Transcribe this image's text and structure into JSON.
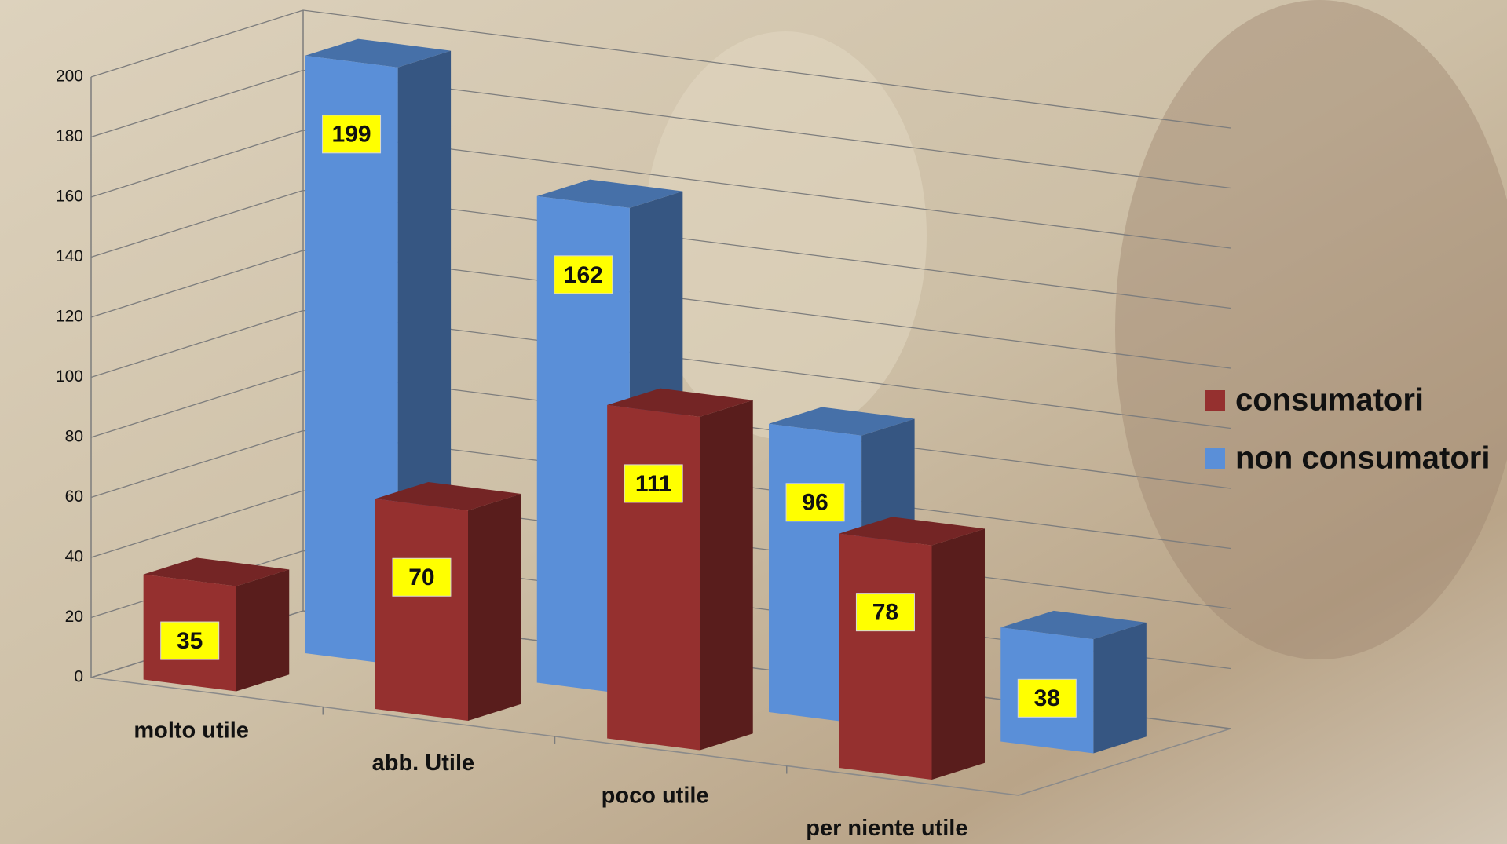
{
  "chart_data": {
    "type": "bar3d",
    "categories": [
      "molto utile",
      "abb. Utile",
      "poco utile",
      "per niente utile"
    ],
    "series": [
      {
        "name": "consumatori",
        "color": "#95302f",
        "values": [
          35,
          70,
          111,
          78
        ]
      },
      {
        "name": "non consumatori",
        "color": "#5a8fd8",
        "values": [
          199,
          162,
          96,
          38
        ]
      }
    ],
    "ylim": [
      0,
      200
    ],
    "yticks": [
      0,
      20,
      40,
      60,
      80,
      100,
      120,
      140,
      160,
      180,
      200
    ],
    "grid": true,
    "legend": "right"
  }
}
